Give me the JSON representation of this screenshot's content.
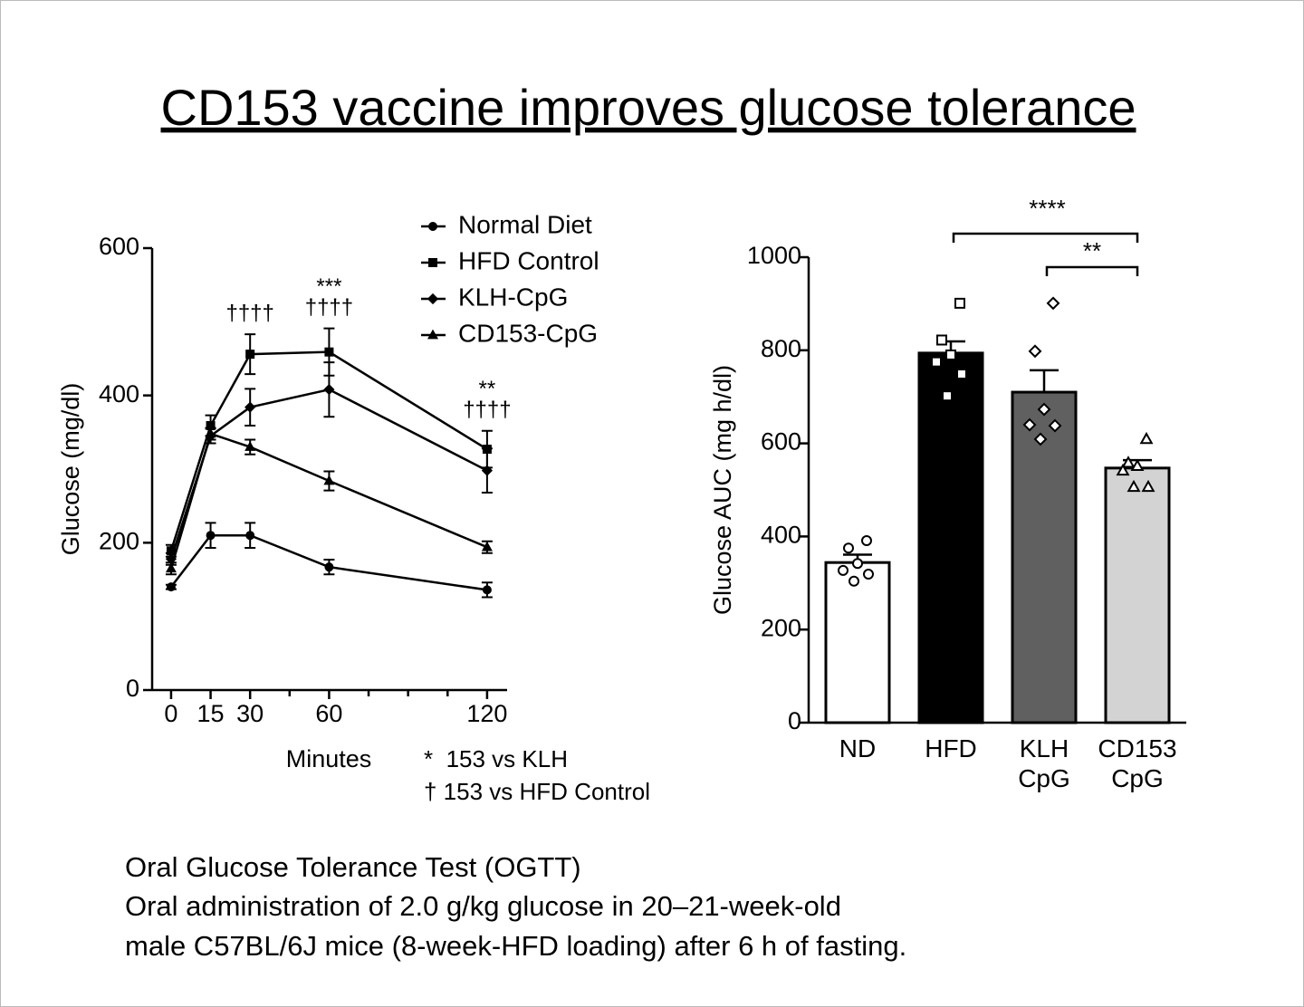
{
  "title": "CD153 vaccine improves glucose tolerance",
  "chart_data": [
    {
      "type": "line",
      "xlabel": "Minutes",
      "ylabel": "Glucose (mg/dl)",
      "x": [
        0,
        15,
        30,
        60,
        120
      ],
      "xlim": [
        -7.2,
        127.6
      ],
      "xticks": [
        0,
        15,
        30,
        60,
        120
      ],
      "xminor_ticks": [
        45,
        75,
        90,
        105
      ],
      "ylim": [
        0,
        600
      ],
      "yticks": [
        0,
        200,
        400,
        600
      ],
      "series": [
        {
          "name": "Normal Diet",
          "color": "#000000",
          "marker": "circle",
          "values": [
            140,
            210,
            210,
            167,
            136
          ],
          "errors": [
            3,
            17,
            17,
            10,
            10
          ]
        },
        {
          "name": "HFD Control",
          "color": "#000000",
          "marker": "square",
          "values": [
            189,
            359,
            456,
            459,
            327
          ],
          "errors": [
            8,
            14,
            27,
            32,
            25
          ]
        },
        {
          "name": "KLH-CpG",
          "color": "#000000",
          "marker": "diamond",
          "values": [
            178,
            345,
            384,
            408,
            298
          ],
          "errors": [
            8,
            10,
            25,
            37,
            30
          ]
        },
        {
          "name": "CD153-CpG",
          "color": "#000000",
          "marker": "triangle",
          "values": [
            165,
            348,
            330,
            284,
            194
          ],
          "errors": [
            8,
            8,
            10,
            13,
            8
          ]
        }
      ],
      "annotations": [
        {
          "x": 30,
          "lines": [
            "††††"
          ]
        },
        {
          "x": 60,
          "lines": [
            "***",
            "††††"
          ]
        },
        {
          "x": 120,
          "lines": [
            "**",
            "††††"
          ]
        }
      ],
      "notes": [
        "*  153 vs KLH",
        "† 153 vs HFD Control"
      ]
    },
    {
      "type": "bar",
      "ylabel": "Glucose AUC (mg h/dl)",
      "categories": [
        "ND",
        "HFD",
        "KLH CpG",
        "CD153 CpG"
      ],
      "values": [
        344,
        794,
        710,
        547
      ],
      "errors": [
        17,
        25,
        47,
        17
      ],
      "colors": [
        "#ffffff",
        "#000000",
        "#606060",
        "#d3d3d3"
      ],
      "markers": [
        "circle",
        "square",
        "diamond",
        "triangle"
      ],
      "points": [
        [
          391,
          375,
          342,
          327,
          319,
          304
        ],
        [
          901,
          822,
          790,
          775,
          749,
          702
        ],
        [
          901,
          798,
          673,
          640,
          638,
          609
        ],
        [
          609,
          558,
          551,
          541,
          506,
          506
        ]
      ],
      "ylim": [
        0,
        1000
      ],
      "yticks": [
        0,
        200,
        400,
        600,
        800,
        1000
      ],
      "significance": [
        {
          "from": 1,
          "to": 3,
          "label": "****"
        },
        {
          "from": 2,
          "to": 3,
          "label": "**"
        }
      ]
    }
  ],
  "footer": [
    "Oral Glucose Tolerance Test (OGTT)",
    "Oral administration of 2.0 g/kg glucose in 20–21-week-old",
    "male C57BL/6J mice (8-week-HFD loading) after 6 h of fasting."
  ]
}
